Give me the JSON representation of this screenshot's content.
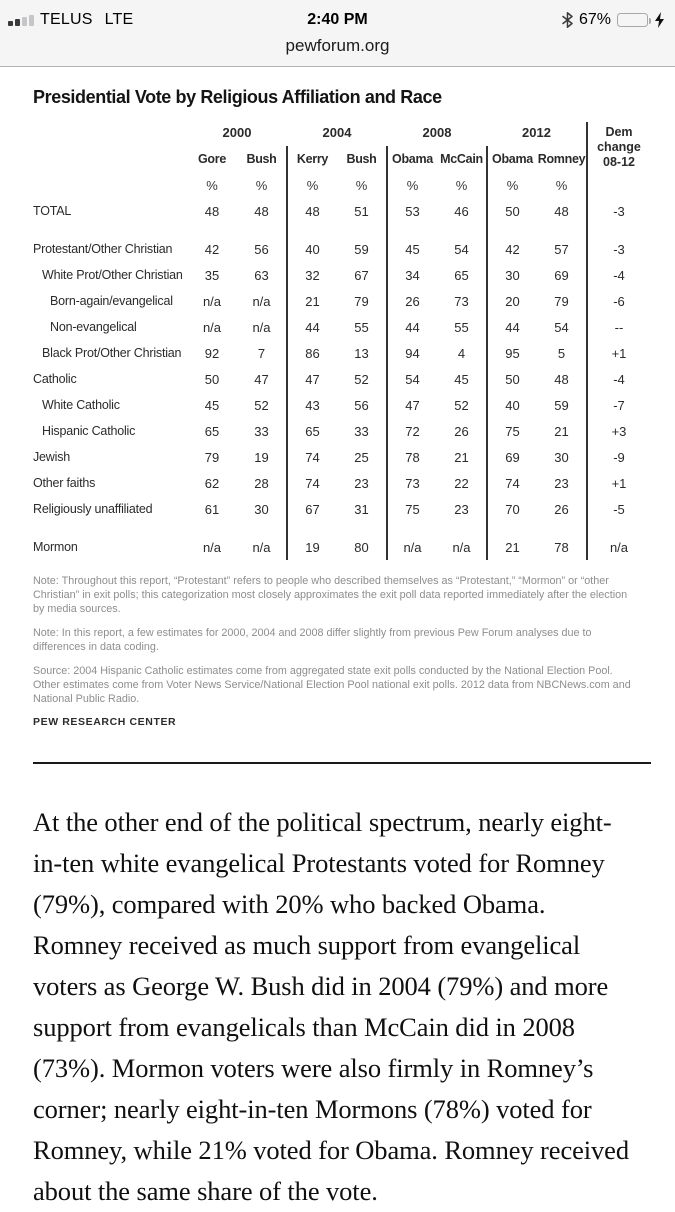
{
  "status_bar": {
    "carrier": "TELUS",
    "network": "LTE",
    "time": "2:40 PM",
    "battery_percent": "67%",
    "battery_color": "#57d35f",
    "signal_bars_filled": 2,
    "signal_bars_total": 4
  },
  "url_bar": {
    "url": "pewforum.org"
  },
  "article": {
    "table": {
      "title": "Presidential Vote by Religious Affiliation and Race",
      "year_groups": [
        {
          "year": "2000",
          "dem": "Gore",
          "rep": "Bush"
        },
        {
          "year": "2004",
          "dem": "Kerry",
          "rep": "Bush"
        },
        {
          "year": "2008",
          "dem": "Obama",
          "rep": "McCain"
        },
        {
          "year": "2012",
          "dem": "Obama",
          "rep": "Romney"
        }
      ],
      "change_header_lines": [
        "Dem",
        "change",
        "08-12"
      ],
      "pct": "%",
      "rows": [
        {
          "label": "TOTAL",
          "indent": 0,
          "space_before": false,
          "v": [
            "48",
            "48",
            "48",
            "51",
            "53",
            "46",
            "50",
            "48"
          ],
          "chg": "-3"
        },
        {
          "label": "Protestant/Other Christian",
          "indent": 0,
          "space_before": true,
          "v": [
            "42",
            "56",
            "40",
            "59",
            "45",
            "54",
            "42",
            "57"
          ],
          "chg": "-3"
        },
        {
          "label": "White Prot/Other Christian",
          "indent": 1,
          "space_before": false,
          "v": [
            "35",
            "63",
            "32",
            "67",
            "34",
            "65",
            "30",
            "69"
          ],
          "chg": "-4"
        },
        {
          "label": "Born-again/evangelical",
          "indent": 2,
          "space_before": false,
          "v": [
            "n/a",
            "n/a",
            "21",
            "79",
            "26",
            "73",
            "20",
            "79"
          ],
          "chg": "-6"
        },
        {
          "label": "Non-evangelical",
          "indent": 2,
          "space_before": false,
          "v": [
            "n/a",
            "n/a",
            "44",
            "55",
            "44",
            "55",
            "44",
            "54"
          ],
          "chg": "--"
        },
        {
          "label": "Black Prot/Other Christian",
          "indent": 1,
          "space_before": false,
          "v": [
            "92",
            "7",
            "86",
            "13",
            "94",
            "4",
            "95",
            "5"
          ],
          "chg": "+1"
        },
        {
          "label": "Catholic",
          "indent": 0,
          "space_before": false,
          "v": [
            "50",
            "47",
            "47",
            "52",
            "54",
            "45",
            "50",
            "48"
          ],
          "chg": "-4"
        },
        {
          "label": "White Catholic",
          "indent": 1,
          "space_before": false,
          "v": [
            "45",
            "52",
            "43",
            "56",
            "47",
            "52",
            "40",
            "59"
          ],
          "chg": "-7"
        },
        {
          "label": "Hispanic Catholic",
          "indent": 1,
          "space_before": false,
          "v": [
            "65",
            "33",
            "65",
            "33",
            "72",
            "26",
            "75",
            "21"
          ],
          "chg": "+3"
        },
        {
          "label": "Jewish",
          "indent": 0,
          "space_before": false,
          "v": [
            "79",
            "19",
            "74",
            "25",
            "78",
            "21",
            "69",
            "30"
          ],
          "chg": "-9"
        },
        {
          "label": "Other faiths",
          "indent": 0,
          "space_before": false,
          "v": [
            "62",
            "28",
            "74",
            "23",
            "73",
            "22",
            "74",
            "23"
          ],
          "chg": "+1"
        },
        {
          "label": "Religiously unaffiliated",
          "indent": 0,
          "space_before": false,
          "v": [
            "61",
            "30",
            "67",
            "31",
            "75",
            "23",
            "70",
            "26"
          ],
          "chg": "-5"
        },
        {
          "label": "Mormon",
          "indent": 0,
          "space_before": true,
          "v": [
            "n/a",
            "n/a",
            "19",
            "80",
            "n/a",
            "n/a",
            "21",
            "78"
          ],
          "chg": "n/a"
        }
      ],
      "notes": [
        "Note: Throughout this report, “Protestant” refers to people who described themselves as “Protestant,” “Mormon” or “other Christian” in exit polls; this categorization most closely approximates the exit poll data reported immediately after the election by media sources.",
        "Note: In this report, a few estimates for 2000, 2004 and 2008 differ slightly from previous Pew Forum analyses due to differences in data coding."
      ],
      "source": "Source: 2004 Hispanic Catholic estimates come from aggregated state exit polls conducted by the National Election Pool. Other estimates come from Voter News Service/National Election Pool national exit polls. 2012 data from NBCNews.com and National Public Radio.",
      "branding": "PEW RESEARCH CENTER"
    },
    "paragraph": "At the other end of the political spectrum, nearly eight-in-ten white evangelical Protestants voted for Romney (79%), compared with 20% who backed Obama. Romney received as much support from evangelical voters as George W. Bush did in 2004 (79%) and more support from evangelicals than McCain did in 2008 (73%). Mormon voters were also firmly in Romney’s corner; nearly eight-in-ten Mormons (78%) voted for Romney, while 21% voted for Obama. Romney received about the same share of the vote."
  }
}
